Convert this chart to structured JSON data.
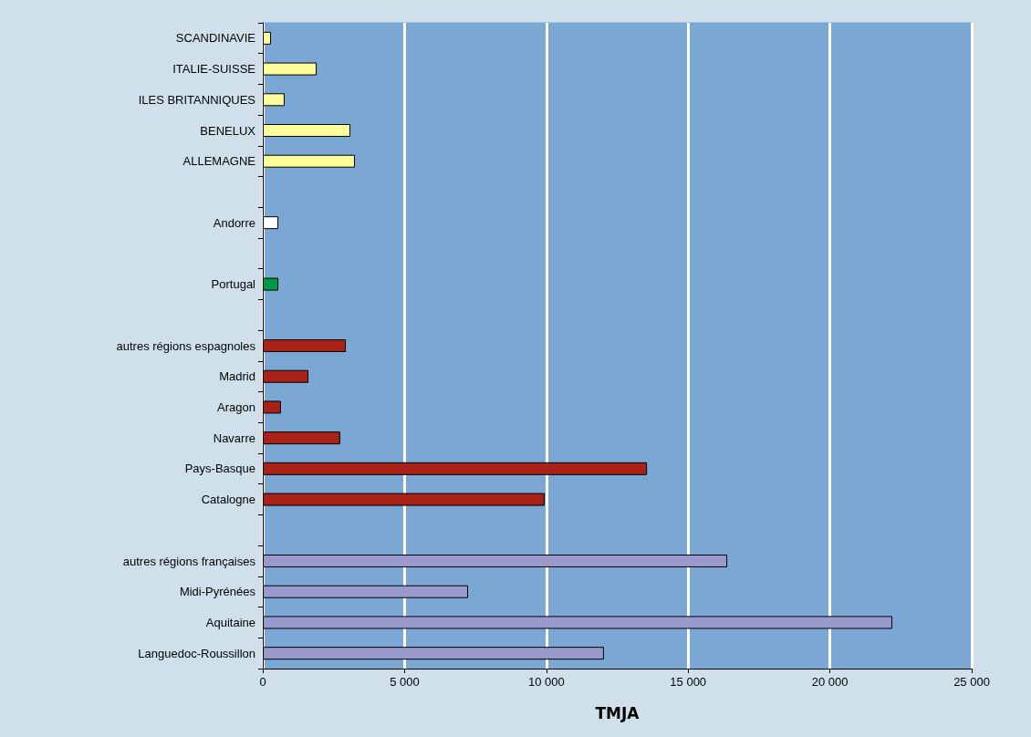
{
  "chart_data": {
    "type": "bar",
    "orientation": "horizontal",
    "xlabel": "TMJA",
    "categories": [
      "SCANDINAVIE",
      "ITALIE-SUISSE",
      "ILES BRITANNIQUES",
      "BENELUX",
      "ALLEMAGNE",
      null,
      "Andorre",
      null,
      "Portugal",
      null,
      "autres régions espagnoles",
      "Madrid",
      "Aragon",
      "Navarre",
      "Pays-Basque",
      "Catalogne",
      null,
      "autres régions françaises",
      "Midi-Pyrénées",
      "Aquitaine",
      "Languedoc-Roussillon"
    ],
    "values": [
      290,
      1900,
      770,
      3090,
      3250,
      null,
      550,
      null,
      550,
      null,
      2930,
      1610,
      640,
      2730,
      13550,
      9940,
      null,
      16380,
      7240,
      22200,
      12030
    ],
    "colors": [
      "#ffff99",
      "#ffff99",
      "#ffff99",
      "#ffff99",
      "#ffff99",
      null,
      "#ffffff",
      null,
      "#009a44",
      null,
      "#aa2118",
      "#aa2118",
      "#aa2118",
      "#aa2118",
      "#aa2118",
      "#aa2118",
      null,
      "#9999cc",
      "#9999cc",
      "#9999cc",
      "#9999cc"
    ],
    "xlim": [
      0,
      25000
    ],
    "xticks": [
      0,
      {
        "value": 5000,
        "label": "5 000"
      },
      {
        "value": 10000,
        "label": "10 000"
      },
      {
        "value": 15000,
        "label": "15 000"
      },
      {
        "value": 20000,
        "label": "20 000"
      },
      {
        "value": 25000,
        "label": "25 000"
      }
    ],
    "grid": "x"
  }
}
